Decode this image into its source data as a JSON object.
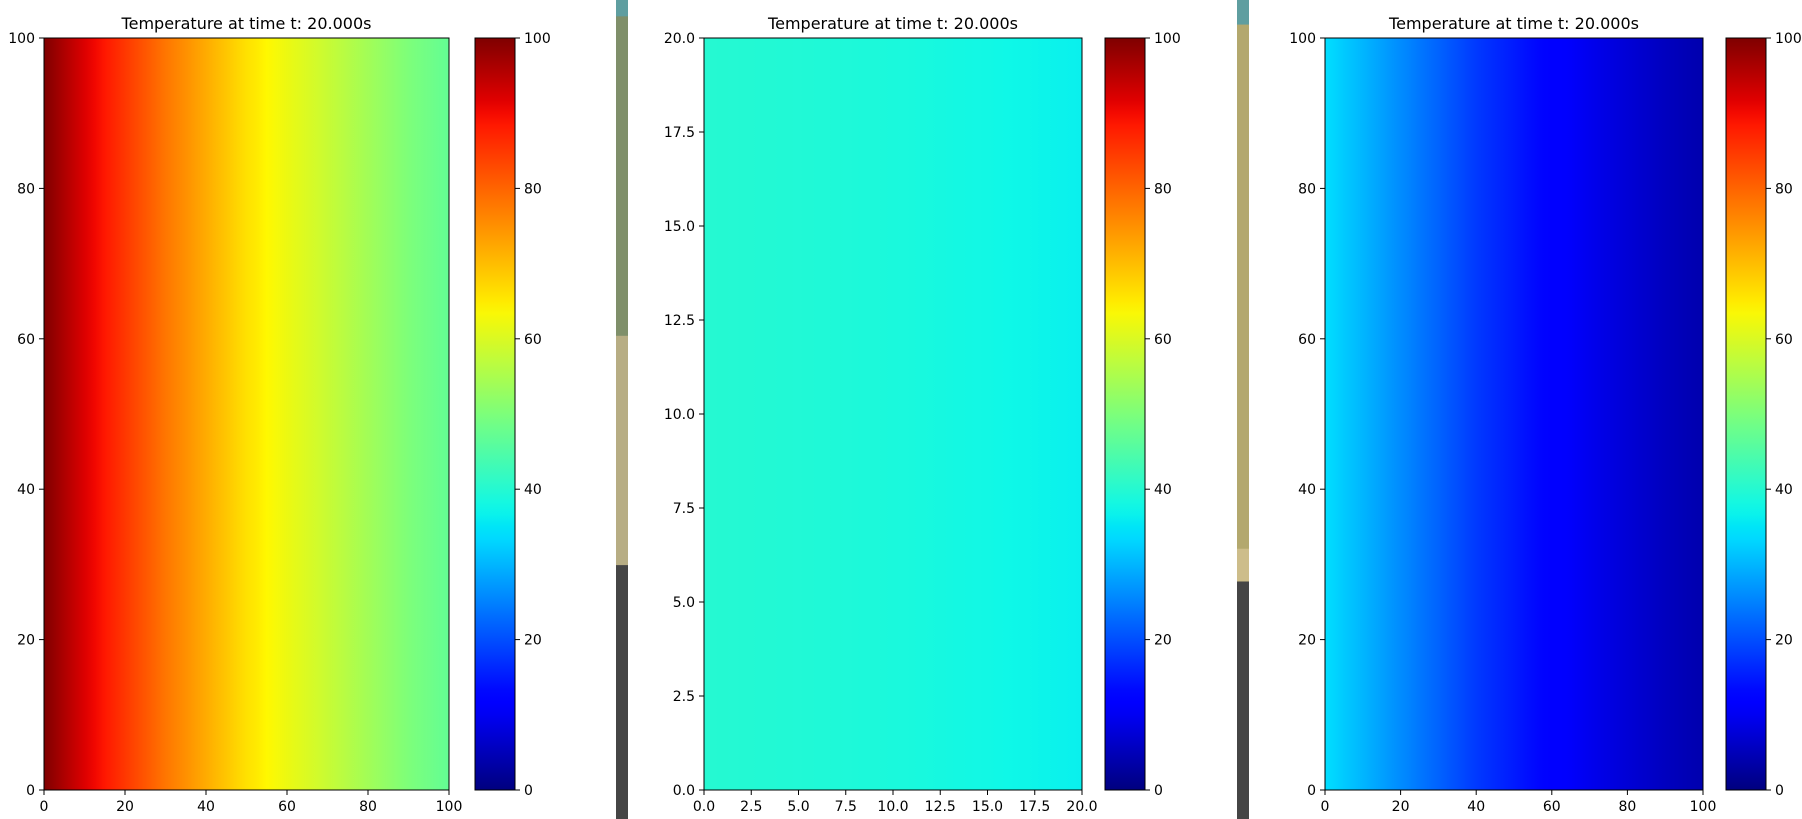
{
  "colormap": {
    "name": "jet",
    "stops": [
      [
        0.0,
        "#00007f"
      ],
      [
        0.11,
        "#0000ff"
      ],
      [
        0.125,
        "#0000ff"
      ],
      [
        0.34,
        "#00dfff"
      ],
      [
        0.35,
        "#00e5f7"
      ],
      [
        0.375,
        "#0ff8e7"
      ],
      [
        0.5,
        "#7dff7a"
      ],
      [
        0.64,
        "#fff800"
      ],
      [
        0.65,
        "#ffea00"
      ],
      [
        0.89,
        "#ff1300"
      ],
      [
        0.91,
        "#e80000"
      ],
      [
        1.0,
        "#7f0000"
      ]
    ]
  },
  "dividers": [
    {
      "segments": [
        {
          "to": 0.02,
          "color": "#5f9ea0"
        },
        {
          "to": 0.41,
          "color": "#7f8f6a"
        },
        {
          "to": 0.69,
          "color": "#b7ad84"
        },
        {
          "to": 1.0,
          "color": "#454545"
        }
      ]
    },
    {
      "segments": [
        {
          "to": 0.03,
          "color": "#5f9ea0"
        },
        {
          "to": 0.67,
          "color": "#b3a86e"
        },
        {
          "to": 0.71,
          "color": "#cdbd8a"
        },
        {
          "to": 1.0,
          "color": "#454545"
        }
      ]
    }
  ],
  "chart_data": [
    {
      "type": "heatmap",
      "title": "Temperature at time t: 20.000s",
      "xlabel": "",
      "ylabel": "",
      "xlim": [
        0,
        100
      ],
      "ylim": [
        0,
        100
      ],
      "xticks": [
        0,
        20,
        40,
        60,
        80,
        100
      ],
      "yticks": [
        0,
        20,
        40,
        60,
        80,
        100
      ],
      "xtick_labels": [
        "0",
        "20",
        "40",
        "60",
        "80",
        "100"
      ],
      "ytick_labels": [
        "0",
        "20",
        "40",
        "60",
        "80",
        "100"
      ],
      "field_along_x": {
        "x": [
          0,
          10,
          20,
          30,
          40,
          50,
          60,
          70,
          80,
          90,
          100
        ],
        "values": [
          100,
          92,
          85,
          78,
          72,
          66,
          62,
          58,
          54,
          50,
          47
        ]
      },
      "clim": [
        0,
        100
      ],
      "colorbar_ticks": [
        0,
        20,
        40,
        60,
        80,
        100
      ],
      "colorbar_tick_labels": [
        "0",
        "20",
        "40",
        "60",
        "80",
        "100"
      ]
    },
    {
      "type": "heatmap",
      "title": "Temperature at time t: 20.000s",
      "xlabel": "",
      "ylabel": "",
      "xlim": [
        0,
        20
      ],
      "ylim": [
        0,
        20
      ],
      "xticks": [
        0,
        2.5,
        5,
        7.5,
        10,
        12.5,
        15,
        17.5,
        20
      ],
      "yticks": [
        0,
        2.5,
        5,
        7.5,
        10,
        12.5,
        15,
        17.5,
        20
      ],
      "xtick_labels": [
        "0.0",
        "2.5",
        "5.0",
        "7.5",
        "10.0",
        "12.5",
        "15.0",
        "17.5",
        "20.0"
      ],
      "ytick_labels": [
        "0.0",
        "2.5",
        "5.0",
        "7.5",
        "10.0",
        "12.5",
        "15.0",
        "17.5",
        "20.0"
      ],
      "field_along_x": {
        "x": [
          0,
          5,
          10,
          15,
          20
        ],
        "values": [
          40,
          39.5,
          38.8,
          37.8,
          36.5
        ]
      },
      "clim": [
        0,
        100
      ],
      "colorbar_ticks": [
        0,
        20,
        40,
        60,
        80,
        100
      ],
      "colorbar_tick_labels": [
        "0",
        "20",
        "40",
        "60",
        "80",
        "100"
      ]
    },
    {
      "type": "heatmap",
      "title": "Temperature at time t: 20.000s",
      "xlabel": "",
      "ylabel": "",
      "xlim": [
        0,
        100
      ],
      "ylim": [
        0,
        100
      ],
      "xticks": [
        0,
        20,
        40,
        60,
        80,
        100
      ],
      "yticks": [
        0,
        20,
        40,
        60,
        80,
        100
      ],
      "xtick_labels": [
        "0",
        "20",
        "40",
        "60",
        "80",
        "100"
      ],
      "ytick_labels": [
        "0",
        "20",
        "40",
        "60",
        "80",
        "100"
      ],
      "field_along_x": {
        "x": [
          0,
          10,
          20,
          30,
          40,
          50,
          60,
          70,
          80,
          90,
          100
        ],
        "values": [
          34,
          30,
          26,
          22,
          18,
          15,
          12,
          9.5,
          7.5,
          5.5,
          4
        ]
      },
      "clim": [
        0,
        100
      ],
      "colorbar_ticks": [
        0,
        20,
        40,
        60,
        80,
        100
      ],
      "colorbar_tick_labels": [
        "0",
        "20",
        "40",
        "60",
        "80",
        "100"
      ]
    }
  ]
}
